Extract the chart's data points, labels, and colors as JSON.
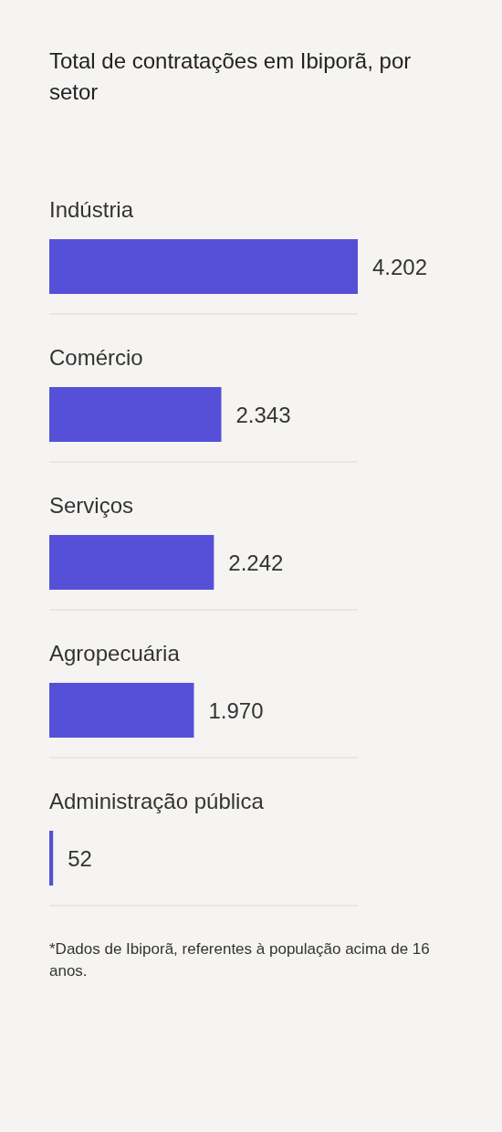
{
  "chart_data": {
    "type": "bar",
    "orientation": "horizontal",
    "title": "Total de contratações em Ibiporã, por setor",
    "categories": [
      "Indústria",
      "Comércio",
      "Serviços",
      "Agropecuária",
      "Administração pública"
    ],
    "values": [
      4202,
      2343,
      2242,
      1970,
      52
    ],
    "value_labels": [
      "4.202",
      "2.343",
      "2.242",
      "1.970",
      "52"
    ],
    "color": "#5650d8",
    "grid": "y",
    "annotations": [
      "*Dados de Ibiporã, referentes à população acima de 16 anos."
    ]
  }
}
